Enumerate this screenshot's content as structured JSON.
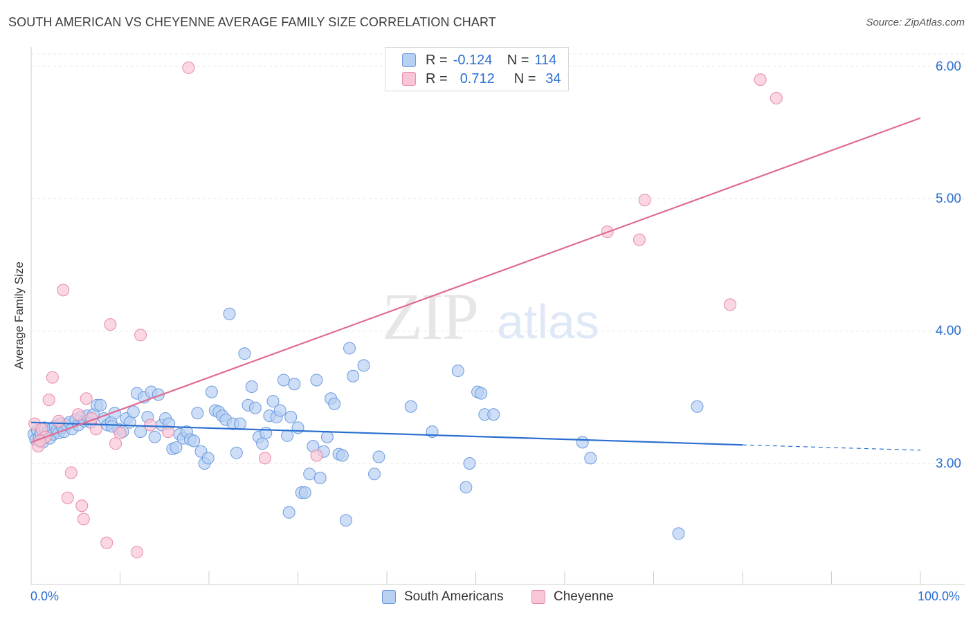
{
  "title": "SOUTH AMERICAN VS CHEYENNE AVERAGE FAMILY SIZE CORRELATION CHART",
  "source": "Source: ZipAtlas.com",
  "watermark": {
    "zip": "ZIP",
    "atlas": "atlas"
  },
  "legend": {
    "r_label": "R =",
    "n_label": "N =",
    "rows": [
      {
        "r": "-0.124",
        "n": "114"
      },
      {
        "r": "0.712",
        "n": "34"
      }
    ]
  },
  "bottom_legend": [
    "South Americans",
    "Cheyenne"
  ],
  "x_tick_labels": {
    "left": "0.0%",
    "right": "100.0%"
  },
  "y_tick_labels": [
    "6.00",
    "5.00",
    "4.00",
    "3.00"
  ],
  "ylabel": "Average Family Size",
  "colors": {
    "blue_fill": "#b8d0f2",
    "blue_stroke": "#6b9ae0",
    "blue_line": "#2a6fd0",
    "pink_fill": "#f8c6d6",
    "pink_stroke": "#e88aa8",
    "pink_line": "#e06a93",
    "value_text": "#2c6fd1"
  },
  "chart_data": {
    "type": "scatter",
    "title": "SOUTH AMERICAN VS CHEYENNE AVERAGE FAMILY SIZE CORRELATION CHART",
    "xlabel": "",
    "ylabel": "Average Family Size",
    "xlim": [
      0,
      100
    ],
    "ylim": [
      2.0,
      6.1
    ],
    "grid": true,
    "legend_position": "top-center",
    "series": [
      {
        "name": "South Americans",
        "r": -0.124,
        "n": 114,
        "trend": {
          "x0": 0,
          "y0": 3.31,
          "x1": 80,
          "y1": 3.14,
          "dashed_to": 100,
          "dashed_y": 3.1
        },
        "points": [
          [
            0.3,
            3.22
          ],
          [
            0.5,
            3.18
          ],
          [
            0.7,
            3.25
          ],
          [
            0.9,
            3.2
          ],
          [
            1.1,
            3.23
          ],
          [
            1.3,
            3.16
          ],
          [
            1.5,
            3.27
          ],
          [
            1.7,
            3.21
          ],
          [
            1.9,
            3.24
          ],
          [
            2.1,
            3.19
          ],
          [
            2.3,
            3.26
          ],
          [
            2.5,
            3.22
          ],
          [
            2.7,
            3.28
          ],
          [
            2.9,
            3.25
          ],
          [
            3.1,
            3.23
          ],
          [
            3.3,
            3.3
          ],
          [
            3.5,
            3.27
          ],
          [
            3.7,
            3.24
          ],
          [
            4.0,
            3.29
          ],
          [
            4.3,
            3.31
          ],
          [
            4.6,
            3.26
          ],
          [
            5.0,
            3.33
          ],
          [
            5.3,
            3.29
          ],
          [
            5.6,
            3.35
          ],
          [
            6.0,
            3.32
          ],
          [
            6.3,
            3.36
          ],
          [
            6.7,
            3.31
          ],
          [
            7.0,
            3.37
          ],
          [
            7.4,
            3.44
          ],
          [
            7.8,
            3.44
          ],
          [
            8.2,
            3.34
          ],
          [
            8.6,
            3.29
          ],
          [
            9.0,
            3.31
          ],
          [
            9.4,
            3.38
          ],
          [
            9.8,
            3.26
          ],
          [
            10.3,
            3.24
          ],
          [
            10.7,
            3.34
          ],
          [
            11.1,
            3.31
          ],
          [
            11.5,
            3.39
          ],
          [
            11.9,
            3.53
          ],
          [
            12.3,
            3.24
          ],
          [
            12.7,
            3.5
          ],
          [
            13.1,
            3.35
          ],
          [
            13.5,
            3.54
          ],
          [
            13.9,
            3.2
          ],
          [
            14.3,
            3.52
          ],
          [
            14.7,
            3.29
          ],
          [
            15.1,
            3.34
          ],
          [
            15.5,
            3.3
          ],
          [
            15.9,
            3.11
          ],
          [
            16.3,
            3.12
          ],
          [
            16.7,
            3.22
          ],
          [
            17.1,
            3.19
          ],
          [
            17.5,
            3.24
          ],
          [
            17.9,
            3.18
          ],
          [
            18.3,
            3.17
          ],
          [
            18.7,
            3.38
          ],
          [
            19.1,
            3.09
          ],
          [
            19.5,
            3.0
          ],
          [
            19.9,
            3.04
          ],
          [
            20.3,
            3.54
          ],
          [
            20.7,
            3.4
          ],
          [
            21.1,
            3.39
          ],
          [
            21.5,
            3.36
          ],
          [
            21.9,
            3.33
          ],
          [
            22.3,
            4.13
          ],
          [
            22.7,
            3.3
          ],
          [
            23.1,
            3.08
          ],
          [
            23.5,
            3.3
          ],
          [
            24.0,
            3.83
          ],
          [
            24.4,
            3.44
          ],
          [
            24.8,
            3.58
          ],
          [
            25.2,
            3.42
          ],
          [
            25.6,
            3.2
          ],
          [
            26.0,
            3.15
          ],
          [
            26.4,
            3.23
          ],
          [
            26.8,
            3.36
          ],
          [
            27.2,
            3.47
          ],
          [
            27.6,
            3.35
          ],
          [
            28.0,
            3.4
          ],
          [
            28.4,
            3.63
          ],
          [
            28.8,
            3.21
          ],
          [
            29.2,
            3.35
          ],
          [
            29.6,
            3.6
          ],
          [
            30.0,
            3.27
          ],
          [
            30.4,
            2.78
          ],
          [
            30.8,
            2.78
          ],
          [
            31.3,
            2.92
          ],
          [
            31.7,
            3.13
          ],
          [
            32.1,
            3.63
          ],
          [
            32.5,
            2.89
          ],
          [
            32.9,
            3.09
          ],
          [
            33.3,
            3.2
          ],
          [
            33.7,
            3.49
          ],
          [
            34.1,
            3.45
          ],
          [
            34.6,
            3.07
          ],
          [
            35.0,
            3.06
          ],
          [
            35.4,
            2.57
          ],
          [
            35.8,
            3.87
          ],
          [
            36.2,
            3.66
          ],
          [
            37.4,
            3.74
          ],
          [
            38.6,
            2.92
          ],
          [
            39.1,
            3.05
          ],
          [
            42.7,
            3.43
          ],
          [
            45.1,
            3.24
          ],
          [
            48.0,
            3.7
          ],
          [
            48.9,
            2.82
          ],
          [
            49.3,
            3.0
          ],
          [
            50.2,
            3.54
          ],
          [
            50.6,
            3.53
          ],
          [
            51.0,
            3.37
          ],
          [
            52.0,
            3.37
          ],
          [
            62.0,
            3.16
          ],
          [
            62.9,
            3.04
          ],
          [
            72.8,
            2.47
          ],
          [
            74.9,
            3.43
          ],
          [
            29.0,
            2.63
          ],
          [
            9.1,
            3.28
          ]
        ]
      },
      {
        "name": "Cheyenne",
        "r": 0.712,
        "n": 34,
        "trend": {
          "x0": 0,
          "y0": 3.16,
          "x1": 100,
          "y1": 5.61
        },
        "points": [
          [
            0.4,
            3.3
          ],
          [
            0.8,
            3.13
          ],
          [
            1.2,
            3.26
          ],
          [
            1.6,
            3.2
          ],
          [
            2.0,
            3.48
          ],
          [
            2.4,
            3.65
          ],
          [
            3.1,
            3.32
          ],
          [
            3.6,
            4.31
          ],
          [
            4.1,
            2.74
          ],
          [
            4.5,
            2.93
          ],
          [
            5.3,
            3.37
          ],
          [
            5.7,
            2.68
          ],
          [
            5.9,
            2.58
          ],
          [
            6.2,
            3.49
          ],
          [
            7.3,
            3.26
          ],
          [
            8.5,
            2.4
          ],
          [
            8.9,
            4.05
          ],
          [
            9.5,
            3.15
          ],
          [
            10.0,
            3.23
          ],
          [
            11.9,
            2.33
          ],
          [
            12.3,
            3.97
          ],
          [
            13.4,
            3.29
          ],
          [
            15.4,
            3.24
          ],
          [
            17.7,
            5.99
          ],
          [
            26.3,
            3.04
          ],
          [
            32.1,
            3.06
          ],
          [
            64.8,
            4.75
          ],
          [
            68.4,
            4.69
          ],
          [
            69.0,
            4.99
          ],
          [
            78.6,
            4.2
          ],
          [
            82.0,
            5.9
          ],
          [
            83.8,
            5.76
          ],
          [
            6.8,
            3.34
          ],
          [
            1.0,
            3.17
          ]
        ]
      }
    ]
  }
}
